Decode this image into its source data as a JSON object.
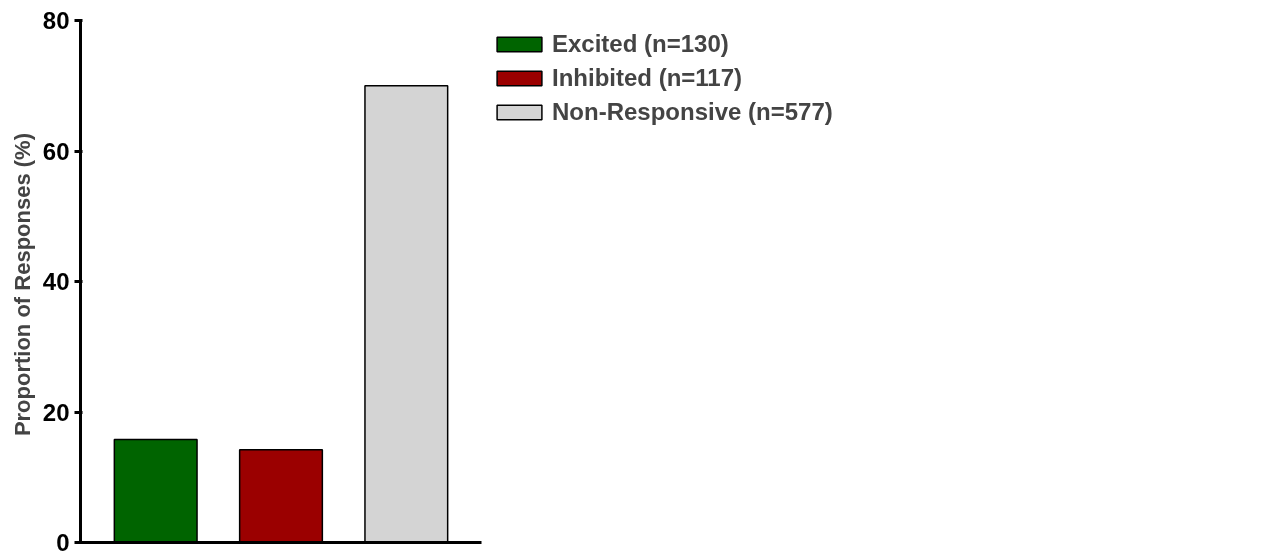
{
  "chart_data": {
    "type": "bar",
    "ylabel": "Proportion of  Responses (%)",
    "categories": [
      null,
      null,
      null
    ],
    "series": [
      {
        "name": "Excited (n=130)",
        "color": "#006400",
        "values": [
          15.8,
          null,
          null
        ]
      },
      {
        "name": "Inhibited (n=117)",
        "color": "#9b0000",
        "values": [
          null,
          14.2,
          null
        ]
      },
      {
        "name": "Non-Responsive (n=577)",
        "color": "#d4d4d4",
        "values": [
          null,
          null,
          70.0
        ]
      }
    ],
    "ylim": [
      0,
      80
    ],
    "yticks": [
      0,
      20,
      40,
      60,
      80
    ],
    "grid": false,
    "legend": "top right"
  }
}
